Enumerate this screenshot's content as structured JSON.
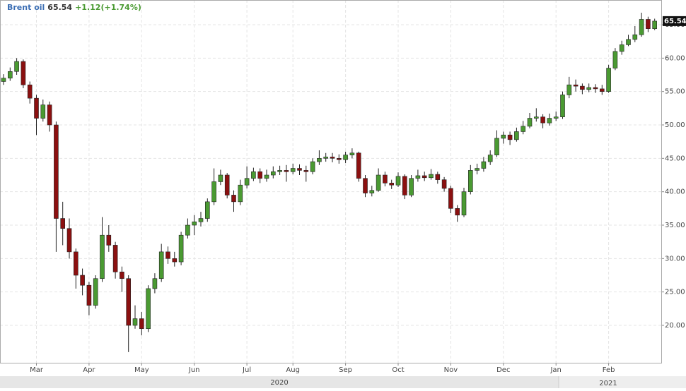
{
  "chart_data": {
    "type": "candlestick",
    "title": "Brent oil",
    "last_price": 65.54,
    "change_label": "+1.12(+1.74%)",
    "categories": [
      null,
      null,
      null,
      null,
      null,
      "Mar",
      null,
      null,
      null,
      null,
      null,
      null,
      null,
      "Apr",
      null,
      null,
      null,
      null,
      null,
      null,
      null,
      "May",
      null,
      null,
      null,
      null,
      null,
      null,
      null,
      "Jun",
      null,
      null,
      null,
      null,
      null,
      null,
      null,
      "Jul",
      null,
      null,
      null,
      null,
      null,
      null,
      "Aug",
      null,
      null,
      null,
      null,
      null,
      null,
      null,
      "Sep",
      null,
      null,
      null,
      null,
      null,
      null,
      null,
      "Oct",
      null,
      null,
      null,
      null,
      null,
      null,
      null,
      "Nov",
      null,
      null,
      null,
      null,
      null,
      null,
      null,
      "Dec",
      null,
      null,
      null,
      null,
      null,
      null,
      null,
      "Jan",
      null,
      null,
      null,
      null,
      null,
      null,
      null,
      "Feb",
      null,
      null,
      null,
      null,
      null,
      null,
      null
    ],
    "years": [
      "2020",
      "2021"
    ],
    "open": [
      56.5,
      57,
      58,
      59.5,
      56,
      54,
      51,
      53,
      50,
      36,
      34.5,
      31,
      27.5,
      26,
      23,
      27,
      33.5,
      32,
      28,
      27,
      20,
      21,
      19.5,
      25.5,
      27,
      31,
      30,
      29.5,
      33.5,
      35,
      35.5,
      36,
      38.5,
      41.5,
      42.5,
      39.5,
      38.5,
      41,
      42,
      43,
      42,
      42.5,
      43,
      43.2,
      43,
      43.5,
      43.2,
      43,
      44.5,
      45,
      45.2,
      45,
      44.8,
      45.5,
      45.8,
      42,
      39.8,
      40.2,
      42.5,
      41.3,
      41,
      42.3,
      39.5,
      42,
      42.4,
      42.1,
      42.6,
      41.8,
      40.5,
      37.5,
      36.5,
      40,
      43.2,
      43.5,
      44.5,
      45.5,
      48,
      48.5,
      47.8,
      49,
      49.8,
      51,
      51.2,
      50.3,
      51,
      51.2,
      54.5,
      56,
      55.8,
      55.3,
      55.6,
      55.4,
      55,
      58.5,
      61,
      62,
      62.8,
      63.5,
      65.8,
      64.4
    ],
    "high": [
      57.6,
      58.6,
      60,
      59.8,
      56.5,
      54.5,
      53.8,
      53.5,
      50.5,
      38.5,
      36,
      31.5,
      28.5,
      26.5,
      27.5,
      36.2,
      35,
      32.5,
      28.8,
      27.5,
      23,
      22,
      26,
      27.8,
      32.2,
      31.8,
      31,
      34,
      36,
      36.5,
      37,
      39,
      43.5,
      43.3,
      42.8,
      40.2,
      41.8,
      43.8,
      43.6,
      43.5,
      43.3,
      43.8,
      43.9,
      44,
      44.2,
      44.1,
      43.9,
      45,
      46.2,
      45.8,
      45.8,
      45.6,
      46,
      46.5,
      46,
      42.5,
      40.9,
      43.5,
      43,
      41.8,
      42.9,
      42.6,
      42.5,
      43.3,
      43,
      43.4,
      43,
      42.2,
      40.9,
      38,
      40.6,
      44,
      44.2,
      45.2,
      46.2,
      49.2,
      49,
      49,
      49.6,
      50.6,
      51.8,
      52.5,
      51.6,
      51.7,
      52,
      55,
      57.2,
      56.8,
      56.2,
      56.2,
      56.1,
      56,
      59,
      61.5,
      62.6,
      63.5,
      64.8,
      66.8,
      66.2,
      65.9
    ],
    "low": [
      56,
      56.6,
      57.5,
      55.5,
      53.2,
      48.5,
      50.5,
      49,
      31,
      32,
      30,
      25.5,
      24.5,
      21.5,
      22.5,
      26.5,
      31,
      27,
      25,
      16,
      19.5,
      18.5,
      19,
      24.8,
      26.5,
      29.2,
      28.8,
      29,
      33,
      33.5,
      34.8,
      35.5,
      38,
      41,
      39,
      37,
      38,
      40.5,
      41.6,
      41.3,
      41.5,
      42,
      42.5,
      41.5,
      42.6,
      42.5,
      41.5,
      42.6,
      44,
      44.5,
      44.4,
      44.2,
      44.3,
      45,
      41.5,
      39.2,
      39.3,
      40,
      40.8,
      40.4,
      40.7,
      38.9,
      39.2,
      41.5,
      41.6,
      41.8,
      41.2,
      40,
      36.8,
      35.5,
      36.2,
      39.6,
      42.6,
      43,
      44,
      45.2,
      47.2,
      47,
      47.5,
      48.6,
      49.5,
      50.5,
      49.5,
      49.9,
      50.6,
      50.9,
      54,
      55,
      54.6,
      54.9,
      54.8,
      54.5,
      54.8,
      58.2,
      60.5,
      61.8,
      62.4,
      63.2,
      63.9,
      64.2
    ],
    "close": [
      57,
      58,
      59.5,
      56,
      54,
      51,
      53,
      50,
      36,
      34.5,
      31,
      27.5,
      26,
      23,
      27,
      33.5,
      32,
      28,
      27,
      20,
      21,
      19.5,
      25.5,
      27,
      31,
      30,
      29.5,
      33.5,
      35,
      35.5,
      36,
      38.5,
      41.5,
      42.5,
      39.5,
      38.5,
      41,
      42,
      43,
      42,
      42.5,
      43,
      43.2,
      43,
      43.5,
      43.2,
      43,
      44.5,
      45,
      45.2,
      45,
      44.8,
      45.5,
      45.8,
      42,
      39.8,
      40.2,
      42.5,
      41.3,
      41,
      42.3,
      39.5,
      42,
      42.4,
      42.1,
      42.6,
      41.8,
      40.5,
      37.5,
      36.5,
      40,
      43.2,
      43.5,
      44.5,
      45.5,
      48,
      48.5,
      47.8,
      49,
      49.8,
      51,
      51.2,
      50.3,
      51,
      51.2,
      54.5,
      56,
      55.8,
      55.3,
      55.6,
      55.4,
      55,
      58.5,
      61,
      62,
      62.8,
      63.5,
      65.8,
      64.4,
      65.54
    ],
    "up_color": "#4a9a32",
    "down_color": "#8b1010",
    "ylim": [
      14.4,
      68.7
    ],
    "yticks": [
      {
        "value": 20,
        "label": "20.00"
      },
      {
        "value": 25,
        "label": "25.00"
      },
      {
        "value": 30,
        "label": "30.00"
      },
      {
        "value": 35,
        "label": "35.00"
      },
      {
        "value": 40,
        "label": "40.00"
      },
      {
        "value": 45,
        "label": "45.00"
      },
      {
        "value": 50,
        "label": "50.00"
      },
      {
        "value": 55,
        "label": "55.00"
      },
      {
        "value": 60,
        "label": "60.00"
      },
      {
        "value": 65,
        "label": "65.00"
      }
    ],
    "grid": true
  }
}
